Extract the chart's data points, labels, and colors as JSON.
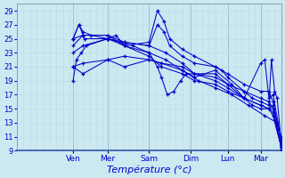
{
  "title": "",
  "xlabel": "Température (°c)",
  "ylabel": "",
  "xlim": [
    0,
    320
  ],
  "ylim": [
    9,
    30
  ],
  "yticks": [
    9,
    11,
    13,
    15,
    17,
    19,
    21,
    23,
    25,
    27,
    29
  ],
  "xtick_positions": [
    68,
    110,
    160,
    210,
    255,
    295
  ],
  "xtick_labels": [
    "Ven",
    "Mer",
    "Sam",
    "Dim",
    "Lun",
    "Mar"
  ],
  "bg_color": "#cce8f0",
  "line_color": "#0000cc",
  "grid_color_major": "#99bbcc",
  "grid_color_minor": "#bbdde8",
  "series": [
    [
      [
        68,
        25
      ],
      [
        75,
        27
      ],
      [
        82,
        25
      ],
      [
        110,
        25
      ],
      [
        140,
        24
      ],
      [
        160,
        23
      ],
      [
        180,
        22
      ],
      [
        200,
        20.5
      ],
      [
        220,
        19
      ],
      [
        240,
        18
      ],
      [
        260,
        17
      ],
      [
        280,
        15.5
      ],
      [
        300,
        14
      ],
      [
        315,
        13
      ],
      [
        320,
        9
      ]
    ],
    [
      [
        68,
        21
      ],
      [
        80,
        20
      ],
      [
        110,
        22
      ],
      [
        130,
        21
      ],
      [
        160,
        22
      ],
      [
        175,
        21.5
      ],
      [
        200,
        20.5
      ],
      [
        215,
        19.5
      ],
      [
        240,
        20.5
      ],
      [
        260,
        18.5
      ],
      [
        275,
        16.5
      ],
      [
        295,
        21.5
      ],
      [
        300,
        22
      ],
      [
        305,
        16.5
      ],
      [
        310,
        17
      ],
      [
        320,
        10.5
      ]
    ],
    [
      [
        68,
        25
      ],
      [
        75,
        27
      ],
      [
        80,
        26
      ],
      [
        90,
        25.5
      ],
      [
        110,
        25
      ],
      [
        130,
        24.5
      ],
      [
        160,
        24
      ],
      [
        180,
        23
      ],
      [
        200,
        21.5
      ],
      [
        215,
        20
      ],
      [
        240,
        19
      ],
      [
        255,
        18
      ],
      [
        275,
        16.5
      ],
      [
        295,
        15.5
      ],
      [
        305,
        15
      ],
      [
        310,
        14
      ],
      [
        320,
        9.5
      ]
    ],
    [
      [
        68,
        19
      ],
      [
        72,
        22
      ],
      [
        78,
        23
      ],
      [
        84,
        24
      ],
      [
        110,
        25
      ],
      [
        120,
        25.5
      ],
      [
        130,
        24
      ],
      [
        160,
        22.5
      ],
      [
        175,
        21
      ],
      [
        200,
        20
      ],
      [
        215,
        19
      ],
      [
        240,
        18.5
      ],
      [
        255,
        17.5
      ],
      [
        275,
        16.5
      ],
      [
        295,
        15.5
      ],
      [
        305,
        15
      ],
      [
        310,
        14.5
      ],
      [
        320,
        9.5
      ]
    ],
    [
      [
        68,
        25
      ],
      [
        80,
        25.5
      ],
      [
        110,
        25.5
      ],
      [
        130,
        24
      ],
      [
        160,
        23
      ],
      [
        170,
        21
      ],
      [
        175,
        19.5
      ],
      [
        182,
        17
      ],
      [
        190,
        17.5
      ],
      [
        198,
        19
      ],
      [
        205,
        20
      ],
      [
        240,
        20
      ],
      [
        255,
        18.5
      ],
      [
        275,
        16.5
      ],
      [
        285,
        15.5
      ],
      [
        295,
        15
      ],
      [
        305,
        15
      ],
      [
        310,
        15.5
      ],
      [
        320,
        11
      ]
    ],
    [
      [
        68,
        23
      ],
      [
        80,
        24
      ],
      [
        110,
        25
      ],
      [
        130,
        24
      ],
      [
        160,
        24.5
      ],
      [
        170,
        29
      ],
      [
        178,
        27.5
      ],
      [
        185,
        25
      ],
      [
        200,
        23.5
      ],
      [
        215,
        22.5
      ],
      [
        240,
        21
      ],
      [
        255,
        20
      ],
      [
        275,
        18.5
      ],
      [
        295,
        17.5
      ],
      [
        305,
        17.5
      ],
      [
        310,
        16
      ],
      [
        320,
        9.5
      ]
    ],
    [
      [
        68,
        24
      ],
      [
        80,
        25.5
      ],
      [
        110,
        25.5
      ],
      [
        130,
        24.5
      ],
      [
        160,
        24
      ],
      [
        170,
        27
      ],
      [
        178,
        26
      ],
      [
        185,
        24
      ],
      [
        200,
        22.5
      ],
      [
        215,
        21.5
      ],
      [
        240,
        21
      ],
      [
        248,
        20.5
      ],
      [
        255,
        19.5
      ],
      [
        275,
        17.5
      ],
      [
        295,
        16.5
      ],
      [
        305,
        16
      ],
      [
        310,
        15
      ],
      [
        320,
        9.5
      ]
    ],
    [
      [
        68,
        21
      ],
      [
        80,
        21.5
      ],
      [
        110,
        22
      ],
      [
        130,
        22.5
      ],
      [
        160,
        22
      ],
      [
        175,
        21.5
      ],
      [
        200,
        21
      ],
      [
        215,
        20
      ],
      [
        240,
        19.5
      ],
      [
        255,
        18.5
      ],
      [
        275,
        17.5
      ],
      [
        285,
        16.5
      ],
      [
        295,
        16
      ],
      [
        305,
        15.5
      ],
      [
        308,
        22
      ],
      [
        312,
        17.5
      ],
      [
        315,
        16.5
      ],
      [
        320,
        10
      ]
    ]
  ]
}
